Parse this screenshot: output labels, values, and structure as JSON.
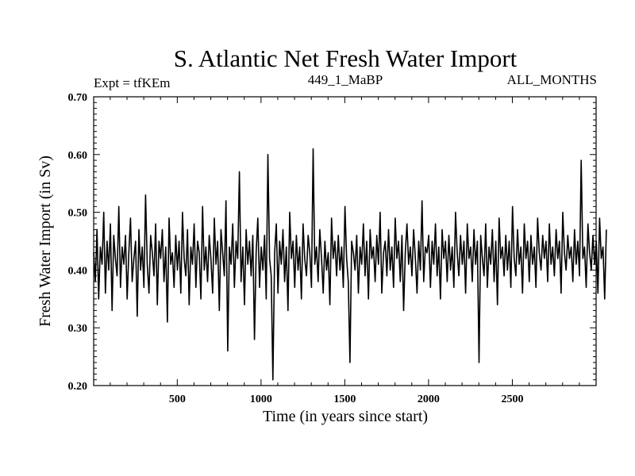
{
  "chart_data": {
    "type": "line",
    "title": "S. Atlantic Net Fresh Water Import",
    "subtitle_left": "Expt = tfKEm",
    "subtitle_center": "449_1_MaBP",
    "subtitle_right": "ALL_MONTHS",
    "xlabel": "Time (in years since start)",
    "ylabel": "Fresh Water Import (in Sv)",
    "xlim": [
      1,
      3000
    ],
    "ylim": [
      0.2,
      0.7
    ],
    "xticks": [
      500,
      1000,
      1500,
      2000,
      2500
    ],
    "xtick_labels": [
      "500",
      "1000",
      "1500",
      "2000",
      "2500"
    ],
    "yticks": [
      0.2,
      0.3,
      0.4,
      0.5,
      0.6,
      0.7
    ],
    "ytick_labels": [
      "0.20",
      "0.30",
      "0.40",
      "0.50",
      "0.60",
      "0.70"
    ],
    "grid": false,
    "line_color": "#000000",
    "series": [
      {
        "x_start": 1,
        "x_step": 10,
        "values": [
          0.43,
          0.38,
          0.47,
          0.35,
          0.44,
          0.41,
          0.5,
          0.36,
          0.45,
          0.4,
          0.48,
          0.33,
          0.46,
          0.42,
          0.39,
          0.51,
          0.37,
          0.44,
          0.41,
          0.46,
          0.35,
          0.43,
          0.49,
          0.38,
          0.42,
          0.45,
          0.32,
          0.47,
          0.4,
          0.44,
          0.37,
          0.53,
          0.41,
          0.36,
          0.46,
          0.43,
          0.39,
          0.48,
          0.34,
          0.45,
          0.42,
          0.47,
          0.38,
          0.44,
          0.31,
          0.49,
          0.41,
          0.43,
          0.37,
          0.46,
          0.4,
          0.45,
          0.36,
          0.5,
          0.42,
          0.39,
          0.47,
          0.34,
          0.44,
          0.41,
          0.48,
          0.37,
          0.45,
          0.43,
          0.35,
          0.51,
          0.4,
          0.44,
          0.38,
          0.46,
          0.42,
          0.36,
          0.49,
          0.41,
          0.45,
          0.33,
          0.47,
          0.43,
          0.39,
          0.52,
          0.26,
          0.44,
          0.41,
          0.48,
          0.37,
          0.45,
          0.42,
          0.57,
          0.38,
          0.44,
          0.34,
          0.47,
          0.41,
          0.45,
          0.39,
          0.46,
          0.28,
          0.43,
          0.49,
          0.37,
          0.44,
          0.4,
          0.46,
          0.35,
          0.6,
          0.42,
          0.39,
          0.21,
          0.43,
          0.48,
          0.36,
          0.45,
          0.41,
          0.47,
          0.38,
          0.44,
          0.33,
          0.5,
          0.42,
          0.45,
          0.37,
          0.46,
          0.4,
          0.44,
          0.35,
          0.48,
          0.42,
          0.39,
          0.46,
          0.43,
          0.37,
          0.61,
          0.41,
          0.44,
          0.38,
          0.47,
          0.42,
          0.36,
          0.45,
          0.4,
          0.43,
          0.34,
          0.49,
          0.42,
          0.45,
          0.39,
          0.46,
          0.4,
          0.44,
          0.37,
          0.51,
          0.42,
          0.38,
          0.24,
          0.45,
          0.43,
          0.4,
          0.46,
          0.36,
          0.44,
          0.41,
          0.48,
          0.39,
          0.45,
          0.35,
          0.47,
          0.42,
          0.44,
          0.38,
          0.46,
          0.41,
          0.5,
          0.36,
          0.43,
          0.45,
          0.39,
          0.47,
          0.4,
          0.44,
          0.37,
          0.49,
          0.42,
          0.45,
          0.38,
          0.46,
          0.33,
          0.43,
          0.48,
          0.41,
          0.44,
          0.39,
          0.47,
          0.42,
          0.36,
          0.45,
          0.4,
          0.52,
          0.38,
          0.44,
          0.43,
          0.46,
          0.37,
          0.45,
          0.41,
          0.48,
          0.39,
          0.44,
          0.35,
          0.47,
          0.42,
          0.45,
          0.38,
          0.46,
          0.4,
          0.44,
          0.37,
          0.5,
          0.43,
          0.39,
          0.46,
          0.41,
          0.45,
          0.36,
          0.48,
          0.42,
          0.44,
          0.38,
          0.47,
          0.41,
          0.45,
          0.24,
          0.46,
          0.42,
          0.39,
          0.48,
          0.37,
          0.44,
          0.41,
          0.47,
          0.38,
          0.45,
          0.34,
          0.49,
          0.42,
          0.44,
          0.39,
          0.46,
          0.4,
          0.45,
          0.37,
          0.51,
          0.42,
          0.39,
          0.47,
          0.41,
          0.44,
          0.36,
          0.48,
          0.42,
          0.45,
          0.38,
          0.46,
          0.41,
          0.44,
          0.37,
          0.49,
          0.43,
          0.4,
          0.46,
          0.42,
          0.45,
          0.38,
          0.48,
          0.41,
          0.44,
          0.39,
          0.47,
          0.42,
          0.45,
          0.36,
          0.5,
          0.43,
          0.4,
          0.46,
          0.42,
          0.44,
          0.38,
          0.47,
          0.41,
          0.45,
          0.39,
          0.59,
          0.42,
          0.44,
          0.37,
          0.48,
          0.43,
          0.4,
          0.46,
          0.41,
          0.45,
          0.36,
          0.49,
          0.42,
          0.44,
          0.35,
          0.47
        ]
      }
    ]
  }
}
